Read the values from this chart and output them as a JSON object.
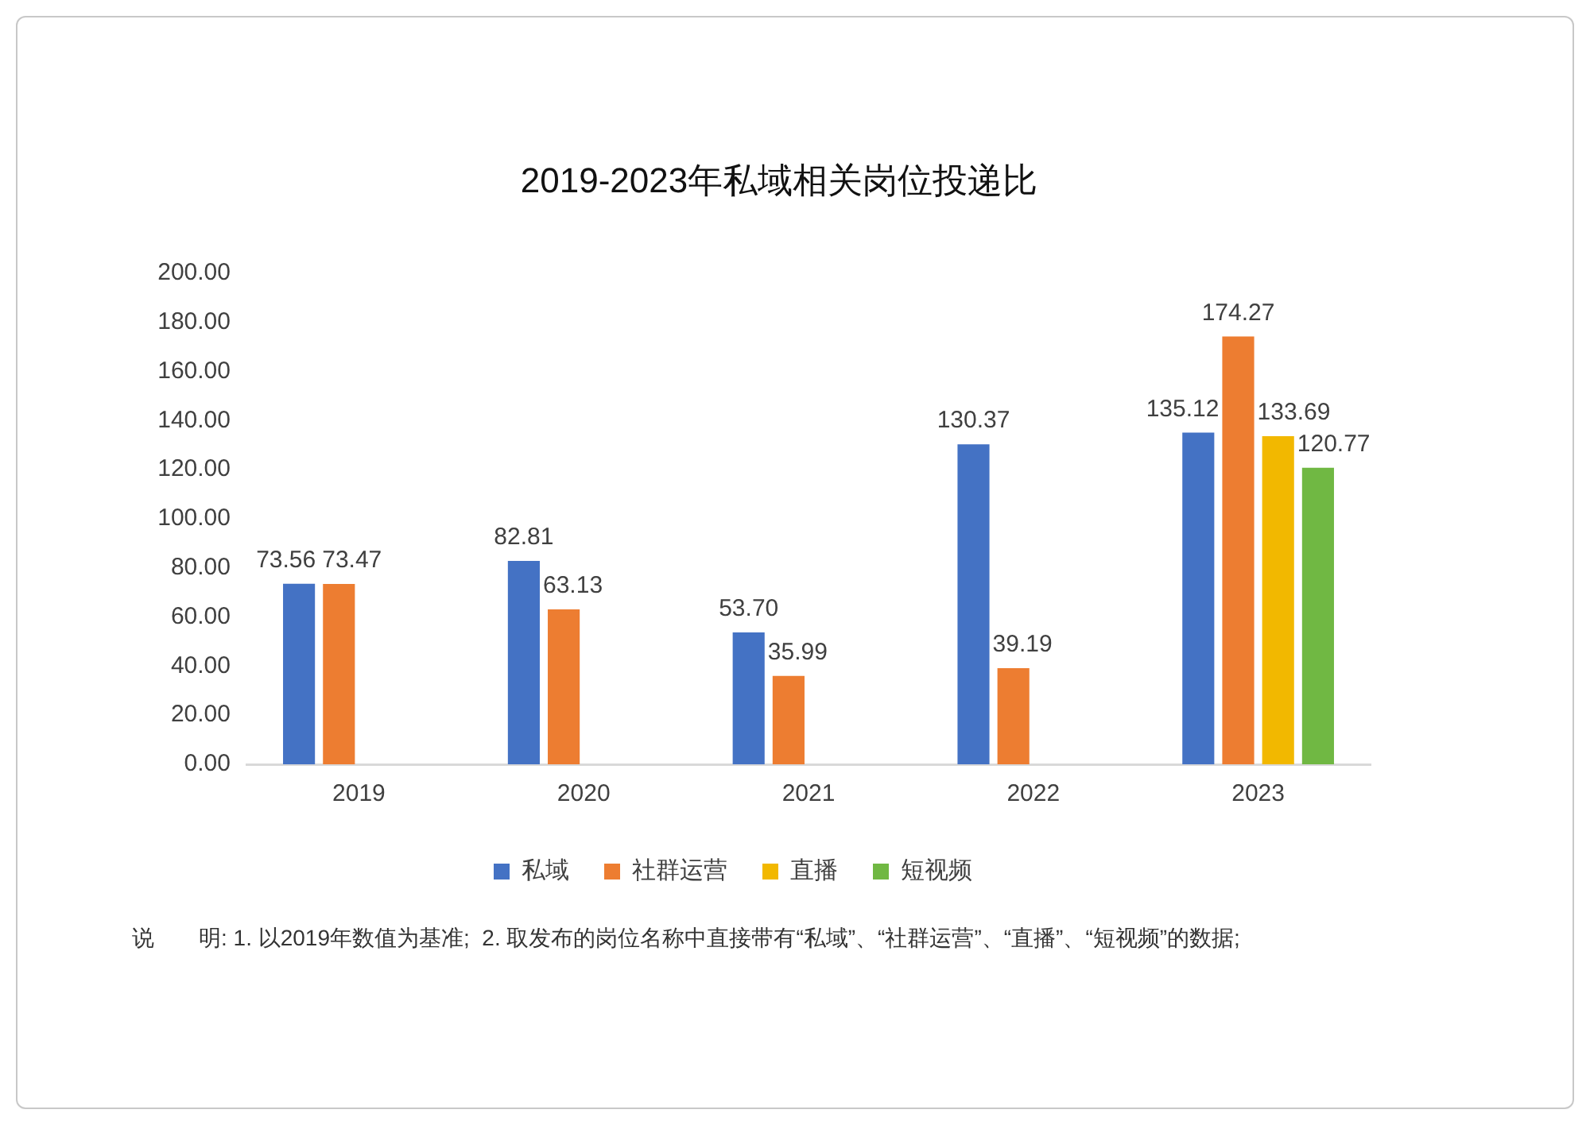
{
  "chart_data": {
    "type": "bar",
    "title": "2019-2023年私域相关岗位投递比",
    "categories": [
      "2019",
      "2020",
      "2021",
      "2022",
      "2023"
    ],
    "series": [
      {
        "name": "私域",
        "color": "#4472c4",
        "values": [
          73.56,
          82.81,
          53.7,
          130.37,
          135.12
        ],
        "value_labels": [
          "73.56",
          "82.81",
          "53.70",
          "130.37",
          "135.12"
        ]
      },
      {
        "name": "社群运营",
        "color": "#ed7d31",
        "values": [
          73.47,
          63.13,
          35.99,
          39.19,
          174.27
        ],
        "value_labels": [
          "73.47",
          "63.13",
          "35.99",
          "39.19",
          "174.27"
        ]
      },
      {
        "name": "直播",
        "color": "#f2b800",
        "values": [
          null,
          null,
          null,
          null,
          133.69
        ],
        "value_labels": [
          null,
          null,
          null,
          null,
          "133.69"
        ]
      },
      {
        "name": "短视频",
        "color": "#70b843",
        "values": [
          null,
          null,
          null,
          null,
          120.77
        ],
        "value_labels": [
          null,
          null,
          null,
          null,
          "120.77"
        ]
      }
    ],
    "ylim": [
      0,
      200
    ],
    "yticks": [
      {
        "value": 0,
        "label": "0.00"
      },
      {
        "value": 20,
        "label": "20.00"
      },
      {
        "value": 40,
        "label": "40.00"
      },
      {
        "value": 60,
        "label": "60.00"
      },
      {
        "value": 80,
        "label": "80.00"
      },
      {
        "value": 100,
        "label": "100.00"
      },
      {
        "value": 120,
        "label": "120.00"
      },
      {
        "value": 140,
        "label": "140.00"
      },
      {
        "value": 160,
        "label": "160.00"
      },
      {
        "value": 180,
        "label": "180.00"
      },
      {
        "value": 200,
        "label": "200.00"
      }
    ],
    "grid": false,
    "legend": "bottom",
    "annotations": [
      "说　　明: 1. 以2019年数值为基准;  2. 取发布的岗位名称中直接带有“私域”、“社群运营”、“直播”、“短视频”的数据;"
    ]
  }
}
